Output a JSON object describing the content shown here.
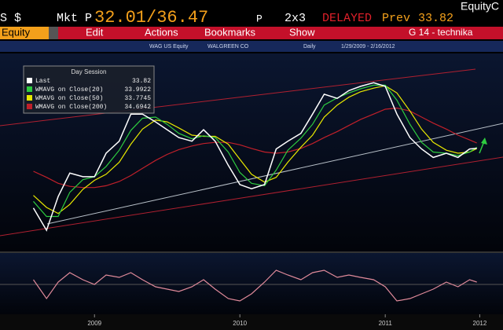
{
  "header": {
    "left": "S $",
    "mkt_label": "Mkt P",
    "quote": "32.01/36.47",
    "quote_suffix": "P",
    "size": "2x3",
    "status": "DELAYED",
    "prev_label": "Prev",
    "prev_value": 33.82,
    "corner": "EquityC"
  },
  "menu": {
    "security": "Equity",
    "items": [
      "Edit",
      "Actions",
      "Bookmarks",
      "Show"
    ],
    "screen": "G 14 - technika"
  },
  "info_bar": {
    "ticker": "WAG US Equity",
    "name": "WALGREEN CO",
    "period": "Daily",
    "range": "1/29/2009 - 2/16/2012"
  },
  "legend": {
    "title": "Day Session",
    "rows": [
      {
        "label": "Last",
        "value": 33.82
      },
      {
        "label": "WMAVG on Close(20)",
        "value": 33.9922
      },
      {
        "label": "WMAVG on Close(50)",
        "value": 33.7745
      },
      {
        "label": "WMAVG on Close(200)",
        "value": 34.6942
      }
    ]
  },
  "chart_data": [
    {
      "type": "line",
      "x": [
        2009.08,
        2009.17,
        2009.25,
        2009.33,
        2009.42,
        2009.5,
        2009.58,
        2009.67,
        2009.75,
        2009.83,
        2009.92,
        2010.0,
        2010.08,
        2010.17,
        2010.25,
        2010.33,
        2010.42,
        2010.5,
        2010.58,
        2010.67,
        2010.75,
        2010.83,
        2010.92,
        2011.0,
        2011.08,
        2011.17,
        2011.25,
        2011.33,
        2011.42,
        2011.5,
        2011.58,
        2011.67,
        2011.75,
        2011.83,
        2011.92,
        2012.0,
        2012.08,
        2012.13
      ],
      "xlim": [
        2008.85,
        2012.31
      ],
      "ylim": [
        18,
        48
      ],
      "series": [
        {
          "name": "WMAVG on Close(200)",
          "color": "#c0202a",
          "values": [
            30,
            29,
            28,
            27.5,
            27.3,
            27.3,
            27.6,
            28.3,
            29.3,
            30.5,
            31.8,
            32.8,
            33.6,
            34.2,
            34.6,
            34.8,
            34.8,
            34.4,
            33.8,
            33.2,
            33,
            33.2,
            33.8,
            34.6,
            35.6,
            36.6,
            37.6,
            38.6,
            39.5,
            40.3,
            40.5,
            40,
            39,
            38,
            37,
            36,
            35.2,
            34.69
          ]
        },
        {
          "name": "WMAVG on Close(50)",
          "color": "#e8e800",
          "values": [
            26,
            24,
            23,
            24.5,
            27,
            28.5,
            29.5,
            31.5,
            34.5,
            37,
            38.5,
            38.2,
            37.2,
            36,
            35.8,
            35.8,
            34.5,
            32,
            29.5,
            28.2,
            29,
            31.5,
            34,
            36,
            39,
            41,
            42.3,
            43.2,
            43.8,
            44.2,
            43,
            40,
            37,
            34.8,
            33.5,
            33,
            33.2,
            33.77
          ]
        },
        {
          "name": "WMAVG on Close(20)",
          "color": "#2ecc40",
          "values": [
            25,
            22.5,
            22.5,
            26.5,
            28.6,
            29.1,
            30.8,
            33.5,
            36.8,
            38.8,
            39,
            37.8,
            36.3,
            35.4,
            35.9,
            35.6,
            33.2,
            29.8,
            28,
            27.6,
            30.2,
            33.5,
            35.5,
            37.8,
            41,
            42.2,
            43,
            43.7,
            44.3,
            44.3,
            41.8,
            37.8,
            34.8,
            33.2,
            33,
            32.6,
            33.2,
            33.99
          ]
        },
        {
          "name": "Last",
          "color": "#ffffff",
          "values": [
            23.9,
            20.2,
            25.8,
            29.7,
            29.1,
            29.1,
            33,
            35,
            39.5,
            39.5,
            38.2,
            36.9,
            35.6,
            35,
            36.9,
            35,
            31,
            27.8,
            27.1,
            27.8,
            33.7,
            35,
            36.3,
            39.5,
            42.8,
            42.1,
            43.4,
            44.1,
            44.7,
            44.1,
            39.5,
            35.6,
            33.7,
            32.3,
            33,
            32.3,
            33.7,
            33.82
          ]
        }
      ]
    },
    {
      "type": "line",
      "x": [
        2009.08,
        2009.17,
        2009.25,
        2009.33,
        2009.42,
        2009.5,
        2009.58,
        2009.67,
        2009.75,
        2009.83,
        2009.92,
        2010.0,
        2010.08,
        2010.17,
        2010.25,
        2010.33,
        2010.42,
        2010.5,
        2010.58,
        2010.67,
        2010.75,
        2010.83,
        2010.92,
        2011.0,
        2011.08,
        2011.17,
        2011.25,
        2011.33,
        2011.42,
        2011.5,
        2011.58,
        2011.67,
        2011.75,
        2011.83,
        2011.92,
        2012.0,
        2012.08,
        2012.13
      ],
      "xlim": [
        2008.85,
        2012.31
      ],
      "ylim": [
        -1,
        1
      ],
      "xticks": [
        {
          "value": 2009.5,
          "label": "2009"
        },
        {
          "value": 2010.5,
          "label": "2010"
        },
        {
          "value": 2011.5,
          "label": "2011"
        },
        {
          "value": 2012.15,
          "label": "2012"
        }
      ],
      "series": [
        {
          "color": "#e08a9a",
          "values": [
            0.2,
            -0.6,
            0.1,
            0.5,
            0.2,
            0,
            0.4,
            0.3,
            0.5,
            0.2,
            -0.1,
            -0.2,
            -0.3,
            -0.1,
            0.2,
            -0.2,
            -0.6,
            -0.7,
            -0.4,
            0.1,
            0.6,
            0.4,
            0.2,
            0.5,
            0.6,
            0.3,
            0.4,
            0.3,
            0.2,
            -0.1,
            -0.7,
            -0.6,
            -0.4,
            -0.2,
            0.1,
            -0.1,
            0.2,
            0.1
          ]
        }
      ]
    }
  ]
}
